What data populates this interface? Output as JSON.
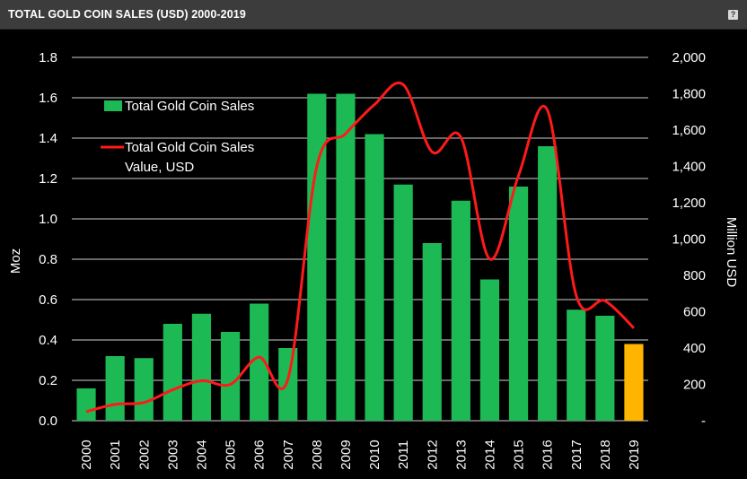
{
  "header": {
    "title": "TOTAL GOLD COIN SALES (USD) 2000-2019",
    "help_label": "?"
  },
  "colors": {
    "bar": "#1db954",
    "bar_highlight": "#ffb400",
    "line": "#ff1a1a",
    "grid": "#d0d0d0",
    "text": "#ffffff"
  },
  "chart_data": {
    "type": "bar",
    "title": "TOTAL GOLD COIN SALES (USD) 2000-2019",
    "categories": [
      "2000",
      "2001",
      "2002",
      "2003",
      "2004",
      "2005",
      "2006",
      "2007",
      "2008",
      "2009",
      "2010",
      "2011",
      "2012",
      "2013",
      "2014",
      "2015",
      "2016",
      "2017",
      "2018",
      "2019"
    ],
    "series": [
      {
        "name": "Total Gold Coin Sales",
        "type": "bar",
        "axis": "left",
        "values": [
          0.16,
          0.32,
          0.31,
          0.48,
          0.53,
          0.44,
          0.58,
          0.36,
          1.62,
          1.62,
          1.42,
          1.17,
          0.88,
          1.09,
          0.7,
          1.16,
          1.36,
          0.55,
          0.52,
          0.38
        ],
        "highlight_index": 19
      },
      {
        "name_lines": [
          "Total Gold Coin Sales",
          "Value, USD"
        ],
        "name": "Total Gold Coin Sales Value, USD",
        "type": "line",
        "axis": "right",
        "values": [
          50,
          90,
          100,
          170,
          220,
          200,
          350,
          230,
          1400,
          1580,
          1740,
          1850,
          1480,
          1560,
          890,
          1350,
          1710,
          690,
          660,
          510
        ]
      }
    ],
    "ylabel": "Moz",
    "ylim": [
      0,
      1.8
    ],
    "yticks": [
      "0.0",
      "0.2",
      "0.4",
      "0.6",
      "0.8",
      "1.0",
      "1.2",
      "1.4",
      "1.6",
      "1.8"
    ],
    "y2label": "Million USD",
    "y2lim": [
      0,
      2000
    ],
    "y2ticks": [
      "-",
      "200",
      "400",
      "600",
      "800",
      "1,000",
      "1,200",
      "1,400",
      "1,600",
      "1,800",
      "2,000"
    ],
    "grid": true,
    "legend_position": "top-left"
  }
}
